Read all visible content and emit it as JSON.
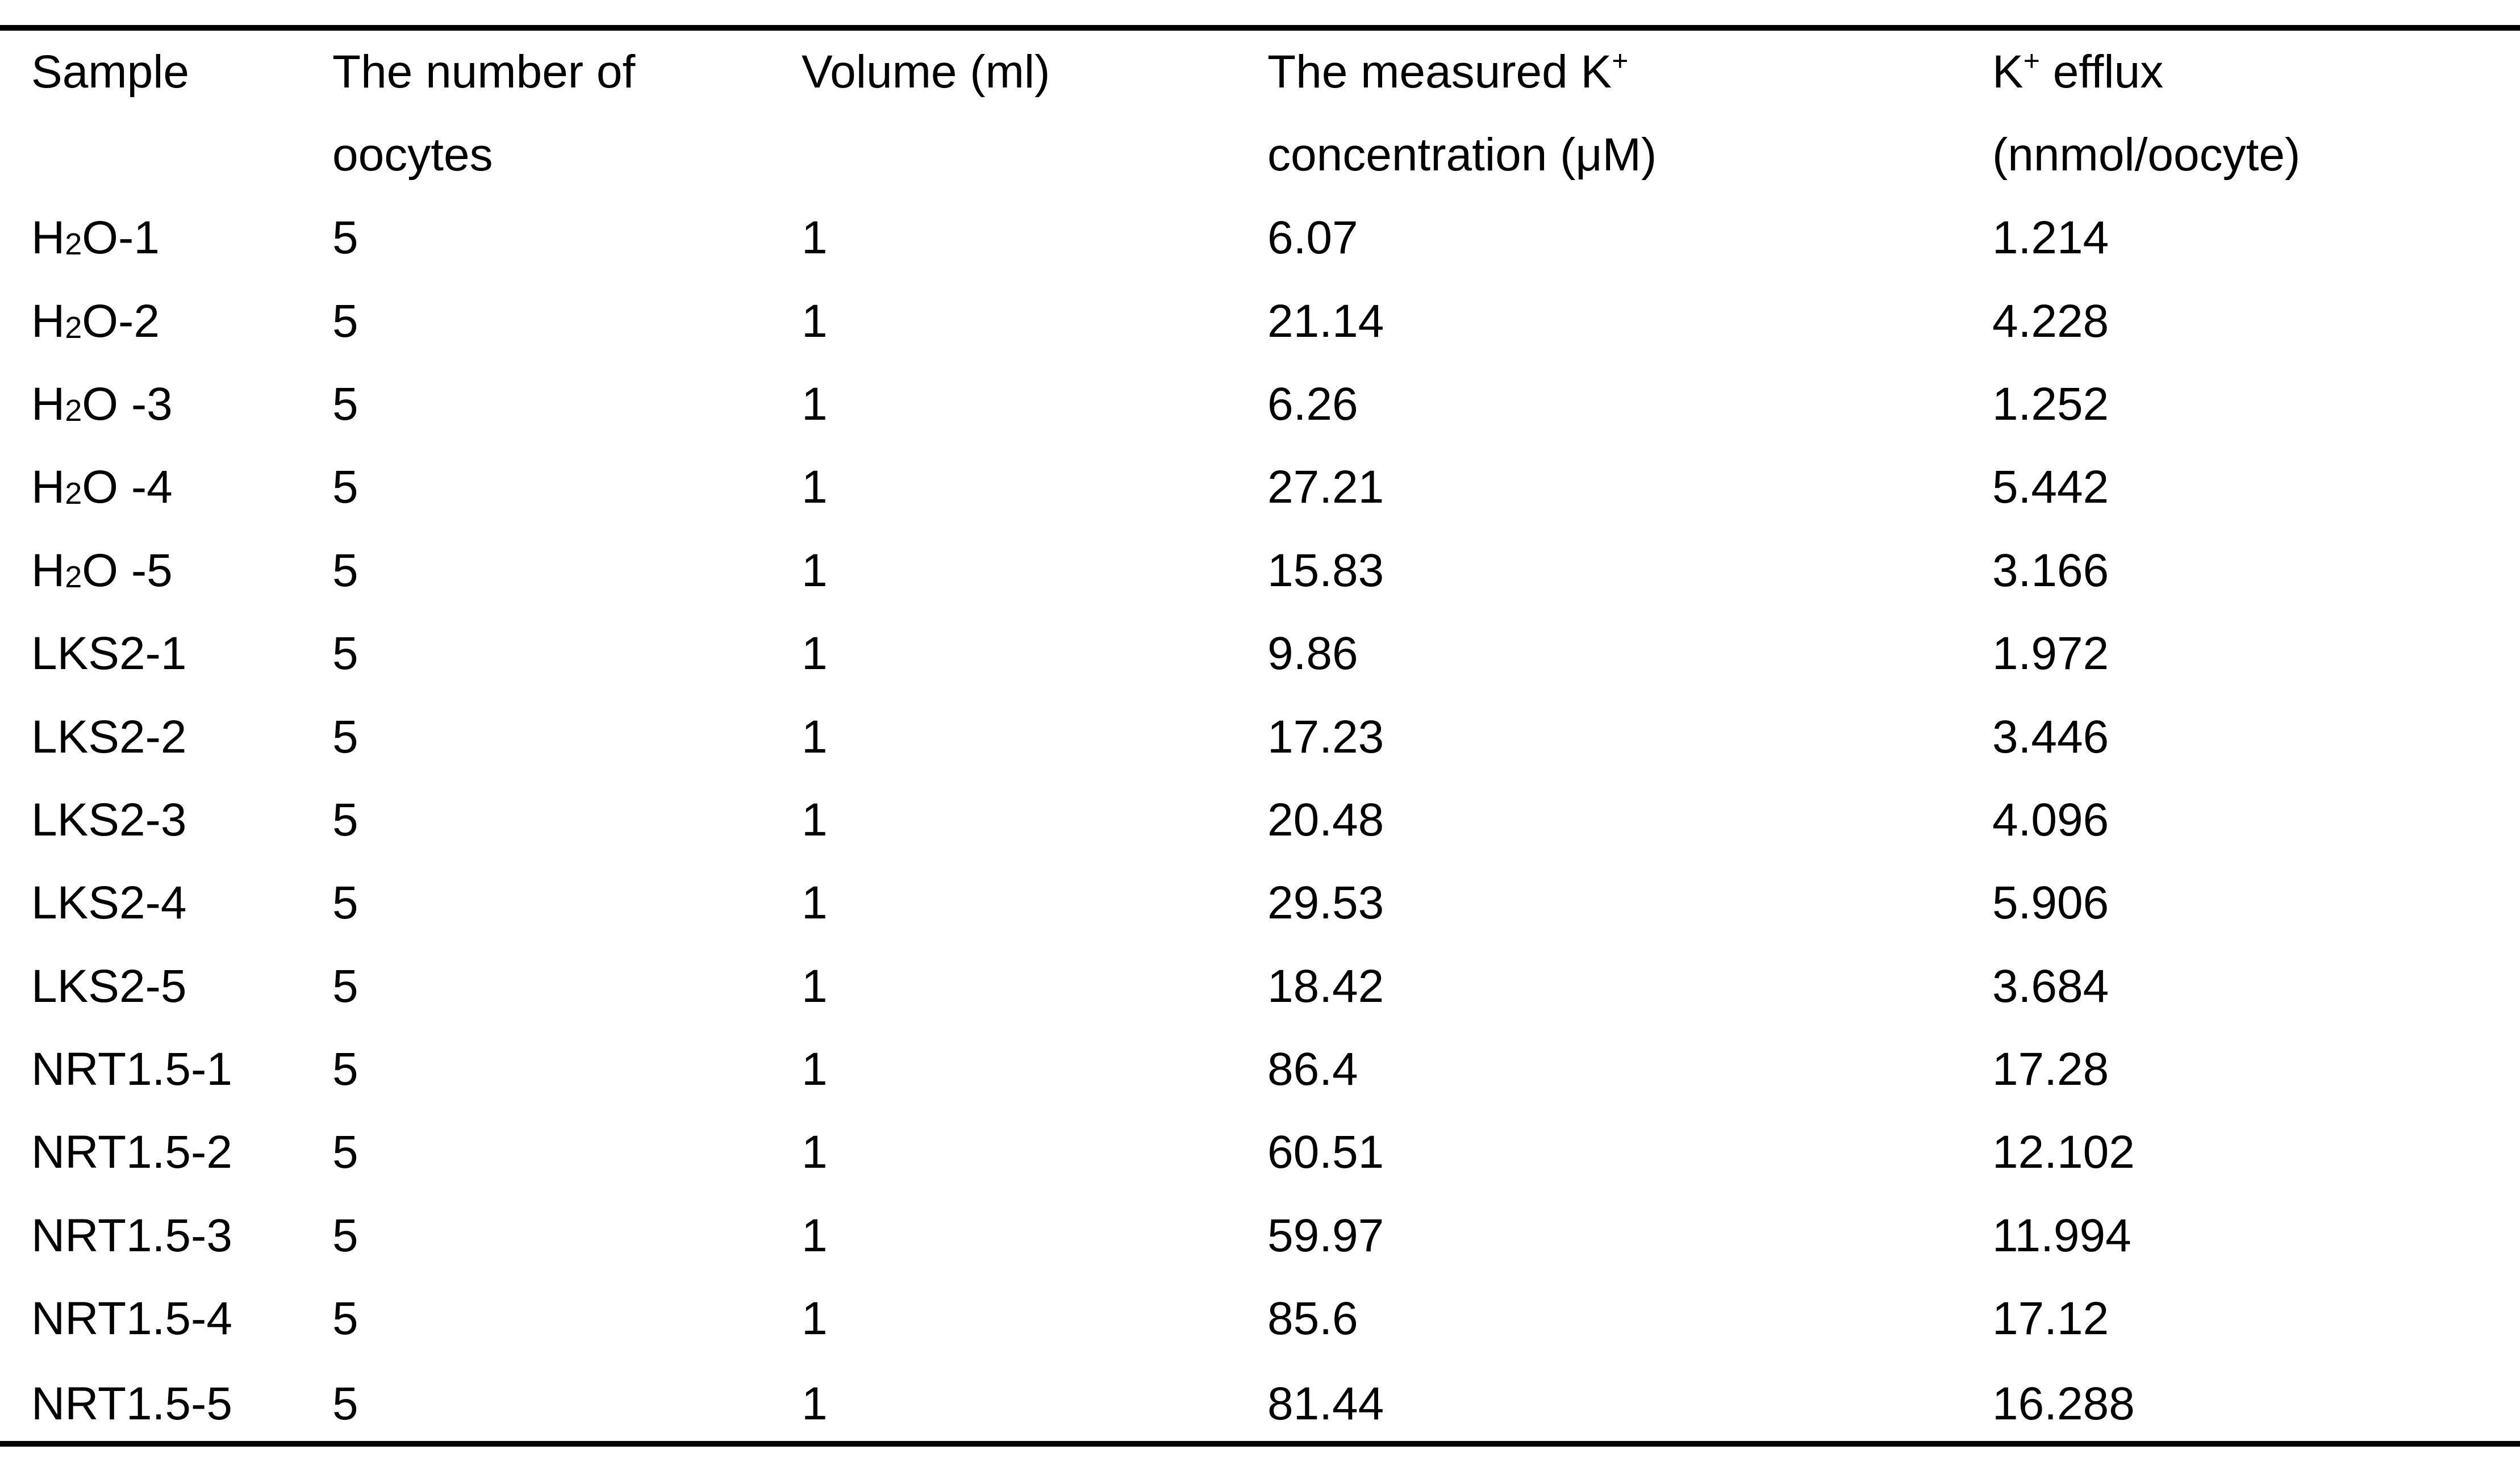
{
  "table": {
    "headers": {
      "sample": "Sample",
      "oocytes_line1": "The number of",
      "oocytes_line2": "oocytes",
      "volume": "Volume (ml)",
      "concentration_line1": "The measured K",
      "concentration_sup": "+",
      "concentration_line2": "concentration (μM)",
      "efflux_line1_prefix": "K",
      "efflux_sup": "+",
      "efflux_line1_suffix": " efflux",
      "efflux_line2": "(nnmol/oocyte)"
    },
    "rows": [
      {
        "sample_prefix": "H",
        "sample_sub": "2",
        "sample_suffix": "O-1",
        "oocytes": "5",
        "volume": "1",
        "concentration": "6.07",
        "efflux": "1.214"
      },
      {
        "sample_prefix": "H",
        "sample_sub": "2",
        "sample_suffix": "O-2",
        "oocytes": "5",
        "volume": "1",
        "concentration": "21.14",
        "efflux": "4.228"
      },
      {
        "sample_prefix": "H",
        "sample_sub": "2",
        "sample_suffix": "O -3",
        "oocytes": "5",
        "volume": "1",
        "concentration": "6.26",
        "efflux": "1.252"
      },
      {
        "sample_prefix": "H",
        "sample_sub": "2",
        "sample_suffix": "O -4",
        "oocytes": "5",
        "volume": "1",
        "concentration": "27.21",
        "efflux": "5.442"
      },
      {
        "sample_prefix": "H",
        "sample_sub": "2",
        "sample_suffix": "O -5",
        "oocytes": "5",
        "volume": "1",
        "concentration": "15.83",
        "efflux": "3.166"
      },
      {
        "sample_prefix": "LKS2-1",
        "sample_sub": "",
        "sample_suffix": "",
        "oocytes": "5",
        "volume": "1",
        "concentration": "9.86",
        "efflux": "1.972"
      },
      {
        "sample_prefix": "LKS2-2",
        "sample_sub": "",
        "sample_suffix": "",
        "oocytes": "5",
        "volume": "1",
        "concentration": "17.23",
        "efflux": "3.446"
      },
      {
        "sample_prefix": "LKS2-3",
        "sample_sub": "",
        "sample_suffix": "",
        "oocytes": "5",
        "volume": "1",
        "concentration": "20.48",
        "efflux": "4.096"
      },
      {
        "sample_prefix": "LKS2-4",
        "sample_sub": "",
        "sample_suffix": "",
        "oocytes": "5",
        "volume": "1",
        "concentration": "29.53",
        "efflux": "5.906"
      },
      {
        "sample_prefix": "LKS2-5",
        "sample_sub": "",
        "sample_suffix": "",
        "oocytes": "5",
        "volume": "1",
        "concentration": "18.42",
        "efflux": "3.684"
      },
      {
        "sample_prefix": "NRT1.5-1",
        "sample_sub": "",
        "sample_suffix": "",
        "oocytes": "5",
        "volume": "1",
        "concentration": "86.4",
        "efflux": "17.28"
      },
      {
        "sample_prefix": "NRT1.5-2",
        "sample_sub": "",
        "sample_suffix": "",
        "oocytes": "5",
        "volume": "1",
        "concentration": "60.51",
        "efflux": "12.102"
      },
      {
        "sample_prefix": "NRT1.5-3",
        "sample_sub": "",
        "sample_suffix": "",
        "oocytes": "5",
        "volume": "1",
        "concentration": "59.97",
        "efflux": "11.994"
      },
      {
        "sample_prefix": "NRT1.5-4",
        "sample_sub": "",
        "sample_suffix": "",
        "oocytes": "5",
        "volume": "1",
        "concentration": "85.6",
        "efflux": "17.12"
      },
      {
        "sample_prefix": "NRT1.5-5",
        "sample_sub": "",
        "sample_suffix": "",
        "oocytes": "5",
        "volume": "1",
        "concentration": "81.44",
        "efflux": "16.288"
      }
    ]
  }
}
